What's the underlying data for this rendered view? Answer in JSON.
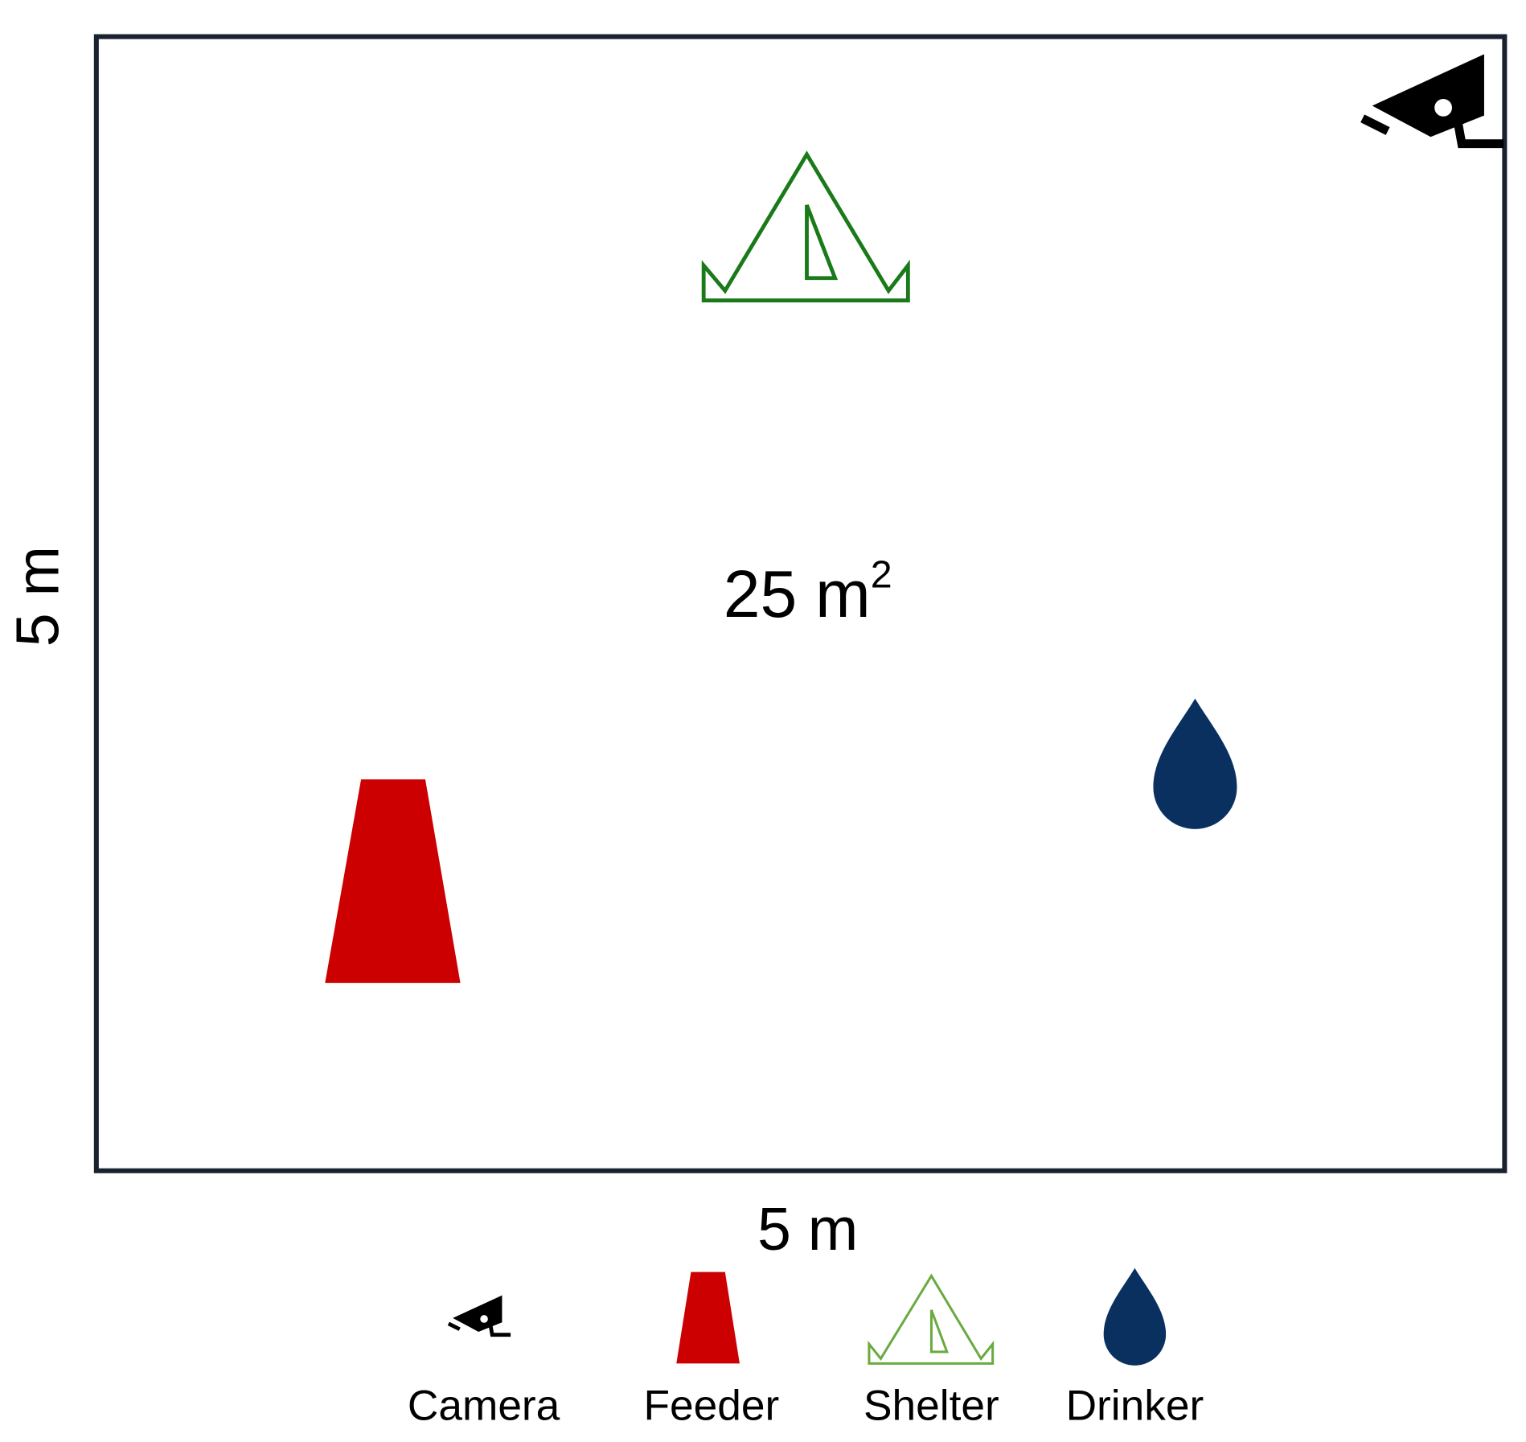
{
  "enclosure": {
    "width_label": "5 m",
    "height_label": "5 m",
    "area_label": {
      "text": "25 m",
      "superscript": "2"
    }
  },
  "legend": {
    "items": [
      "Camera",
      "Feeder",
      "Shelter",
      "Drinker"
    ]
  }
}
